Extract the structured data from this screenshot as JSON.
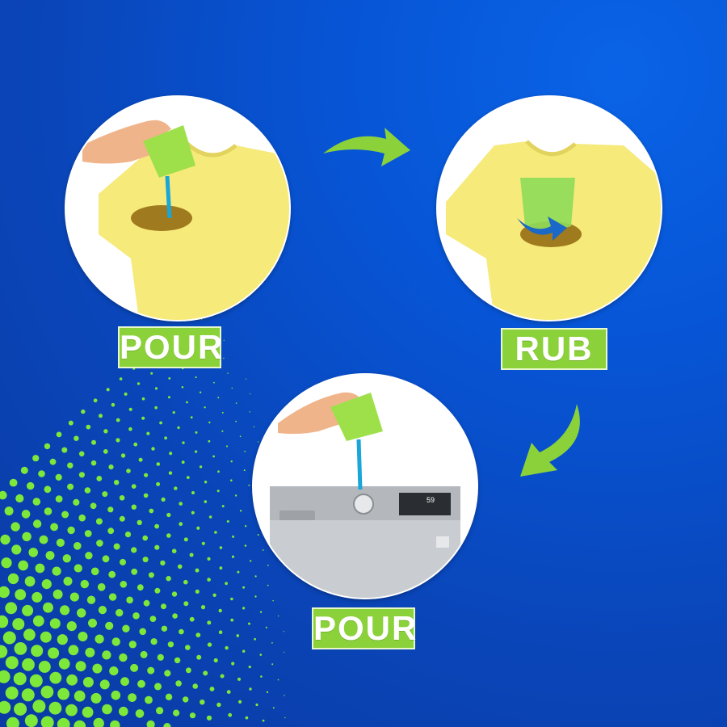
{
  "steps": [
    {
      "label": "POUR",
      "scene": "shirt-pour"
    },
    {
      "label": "RUB",
      "scene": "shirt-rub"
    },
    {
      "label": "POUR",
      "scene": "washer-pour"
    }
  ],
  "colors": {
    "background": "#0755d6",
    "accent_green": "#8bd23a",
    "shirt_yellow": "#f6ea7a",
    "liquid_blue": "#19a6d8"
  },
  "icons": [
    "curved-arrow-right",
    "curved-arrow-down-left"
  ]
}
